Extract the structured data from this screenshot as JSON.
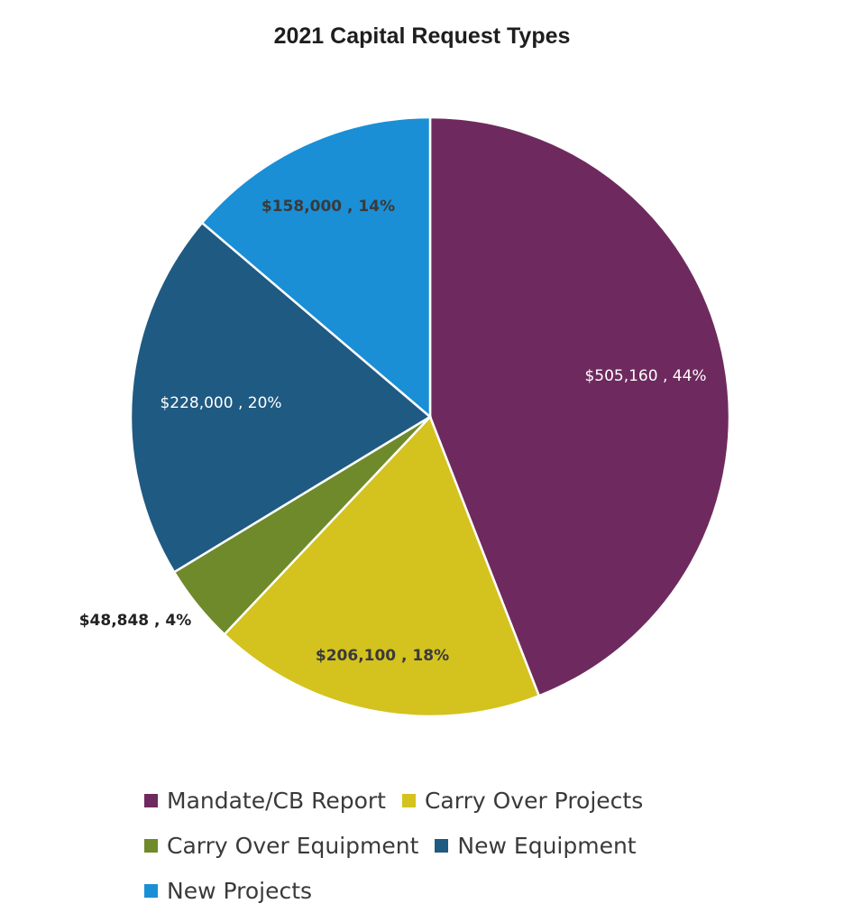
{
  "chart_data": {
    "type": "pie",
    "title": "2021 Capital Request Types",
    "slices": [
      {
        "name": "Mandate/CB Report",
        "value": 505160,
        "percent": 44,
        "label": "$505,160 , 44%",
        "color": "#6e2a5e",
        "label_color": "#ffffff"
      },
      {
        "name": "Carry Over Projects",
        "value": 206100,
        "percent": 18,
        "label": "$206,100 , 18%",
        "color": "#d4c21f",
        "label_color": "#3a3a3a"
      },
      {
        "name": "Carry Over Equipment",
        "value": 48848,
        "percent": 4,
        "label": "$48,848 , 4%",
        "color": "#6f8a2a",
        "label_color": "#222222"
      },
      {
        "name": "New Equipment",
        "value": 228000,
        "percent": 20,
        "label": "$228,000 , 20%",
        "color": "#1f5a82",
        "label_color": "#ffffff"
      },
      {
        "name": "New Projects",
        "value": 158000,
        "percent": 14,
        "label": "$158,000 , 14%",
        "color": "#1a8fd6",
        "label_color": "#3a3a3a"
      }
    ],
    "start_angle": "12 o'clock",
    "direction": "clockwise",
    "legend_position": "bottom"
  }
}
